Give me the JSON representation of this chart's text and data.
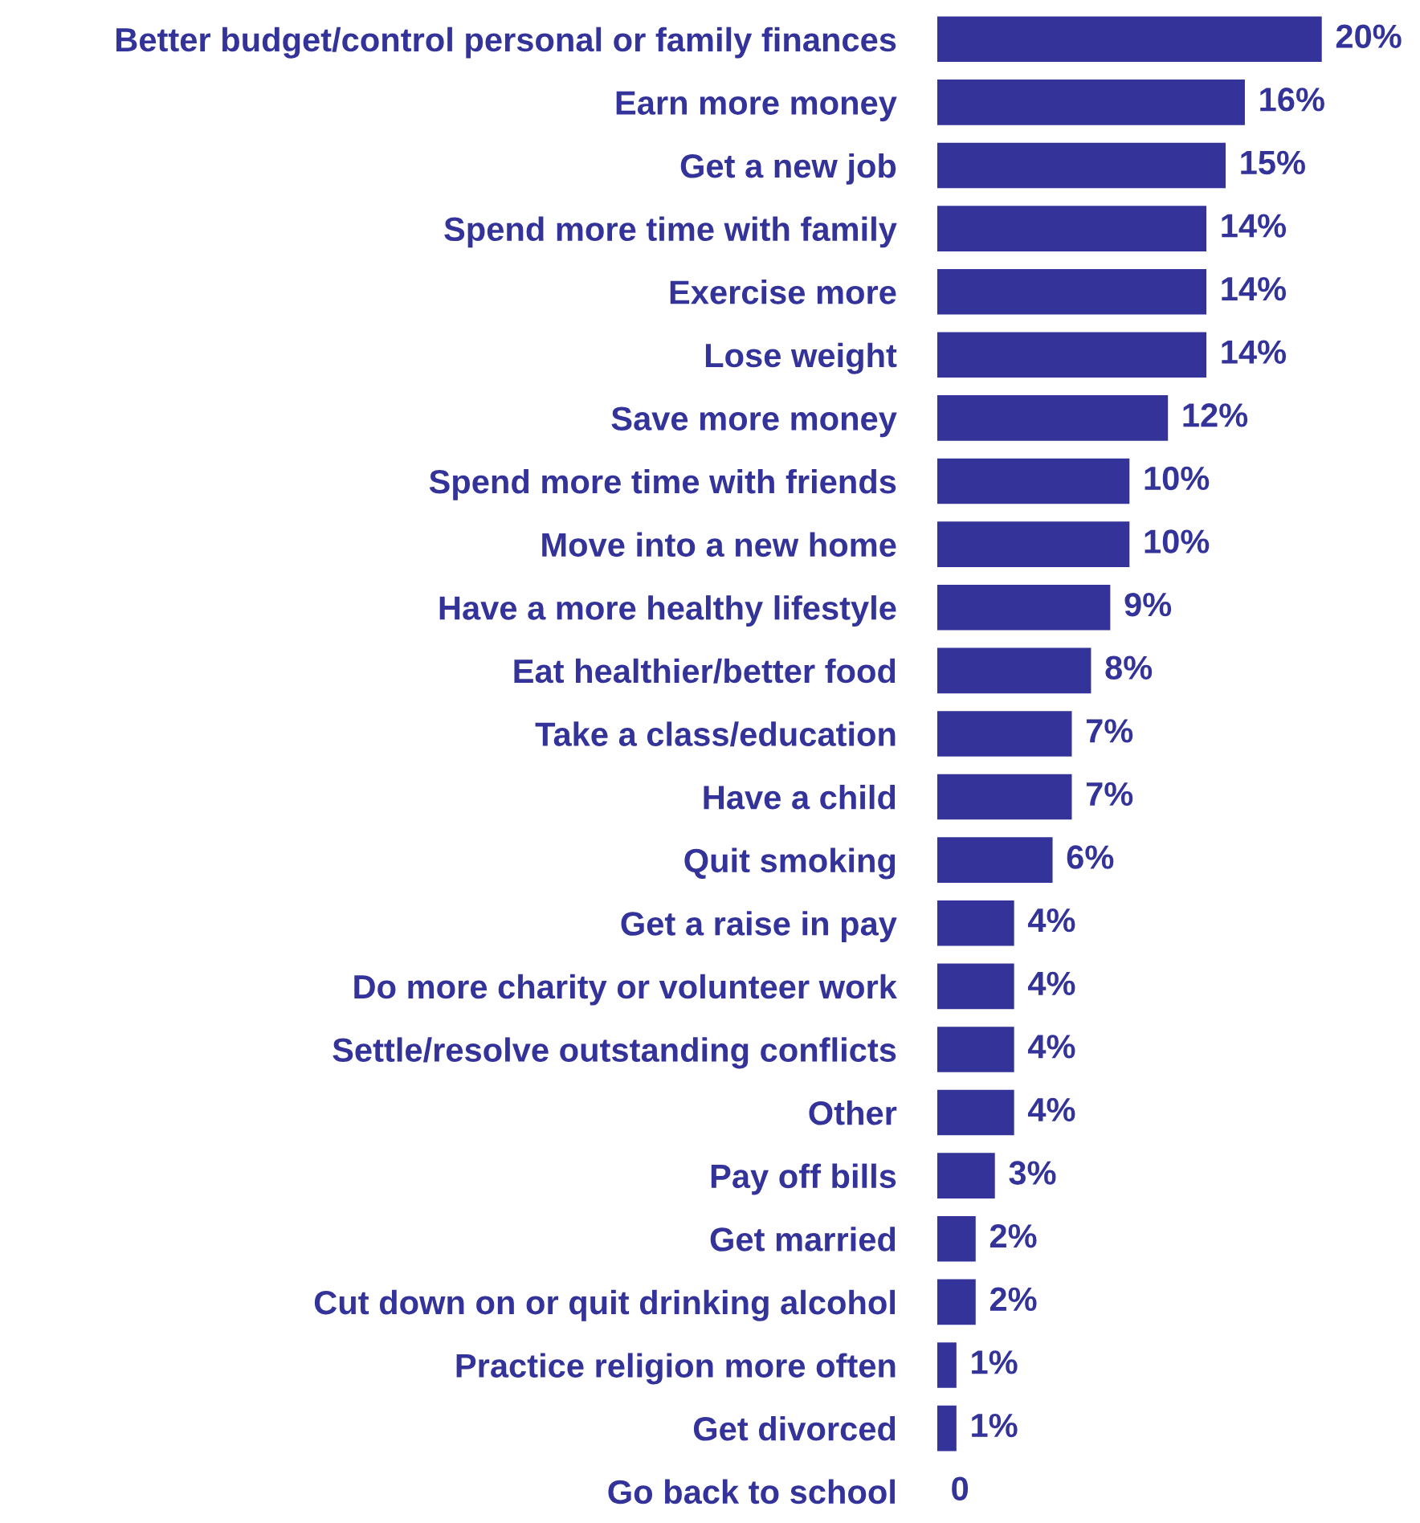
{
  "chart_data": {
    "type": "bar",
    "orientation": "horizontal",
    "categories": [
      "Better budget/control personal or family finances",
      "Earn more money",
      "Get a new job",
      "Spend more time with family",
      "Exercise more",
      "Lose weight",
      "Save more money",
      "Spend more time with friends",
      "Move into a new home",
      "Have a more healthy lifestyle",
      "Eat healthier/better food",
      "Take a class/education",
      "Have a child",
      "Quit smoking",
      "Get a raise in pay",
      "Do more charity or volunteer work",
      "Settle/resolve outstanding conflicts",
      "Other",
      "Pay off bills",
      "Get married",
      "Cut down on or quit drinking alcohol",
      "Practice religion more often",
      "Get divorced",
      "Go back to school"
    ],
    "values": [
      20,
      16,
      15,
      14,
      14,
      14,
      12,
      10,
      10,
      9,
      8,
      7,
      7,
      6,
      4,
      4,
      4,
      4,
      3,
      2,
      2,
      1,
      1,
      0
    ],
    "value_labels": [
      "20%",
      "16%",
      "15%",
      "14%",
      "14%",
      "14%",
      "12%",
      "10%",
      "10%",
      "9%",
      "8%",
      "7%",
      "7%",
      "6%",
      "4%",
      "4%",
      "4%",
      "4%",
      "3%",
      "2%",
      "2%",
      "1%",
      "1%",
      "0"
    ],
    "color": "#333399",
    "grid": false,
    "legend": false
  }
}
